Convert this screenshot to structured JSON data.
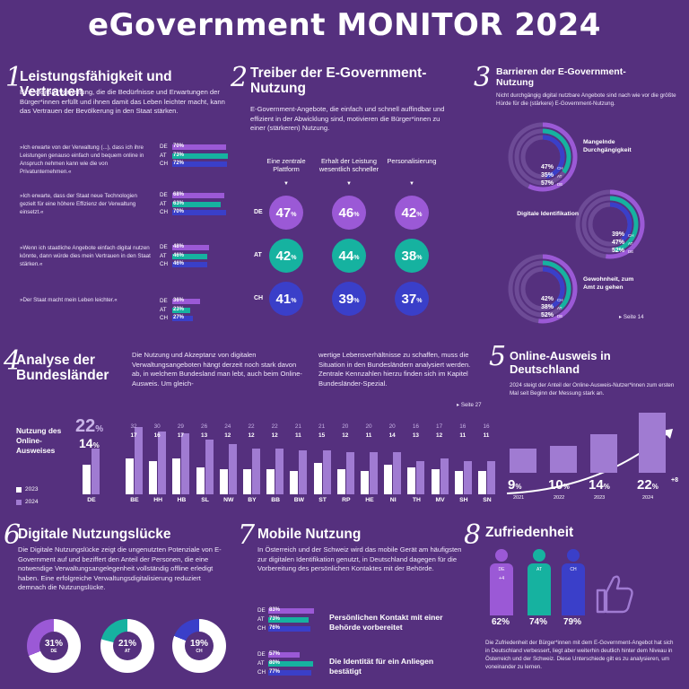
{
  "title": "eGovernment MONITOR 2024",
  "colors": {
    "bg": "#55307e",
    "de": "#9b59d6",
    "at": "#16b2a0",
    "ch": "#3a3fc9",
    "light": "#a07bd2"
  },
  "s1": {
    "num": "1",
    "heading": "Leistungsfähigkeit und Vertrauen",
    "intro": "Eine digitale Verwaltung, die die Bedürfnisse und Erwartungen der Bürger*innen erfüllt und ihnen damit das Leben leichter macht, kann das Vertrauen der Bevölkerung in den Staat stärken.",
    "groups": [
      {
        "q": "»Ich erwarte von der Verwaltung (...), dass ich ihre Leistungen genauso einfach und bequem online in Anspruch nehmen kann wie die von Privatunternehmen.«",
        "rows": [
          {
            "c": "DE",
            "v": 70,
            "t": "70%"
          },
          {
            "c": "AT",
            "v": 73,
            "t": "73%"
          },
          {
            "c": "CH",
            "v": 72,
            "t": "72%"
          }
        ]
      },
      {
        "q": "»Ich erwarte, dass der Staat neue Technologien gezielt für eine höhere Effizienz der Verwaltung einsetzt.«",
        "rows": [
          {
            "c": "DE",
            "v": 68,
            "t": "68%"
          },
          {
            "c": "AT",
            "v": 63,
            "t": "63%"
          },
          {
            "c": "CH",
            "v": 70,
            "t": "70%"
          }
        ]
      },
      {
        "q": "»Wenn ich staatliche Angebote einfach digital nutzen könnte, dann würde dies mein Vertrauen in den Staat stärken.«",
        "rows": [
          {
            "c": "DE",
            "v": 48,
            "t": "48%"
          },
          {
            "c": "AT",
            "v": 46,
            "t": "46%"
          },
          {
            "c": "CH",
            "v": 46,
            "t": "46%"
          }
        ]
      },
      {
        "q": "»Der Staat macht mein Leben leichter.«",
        "rows": [
          {
            "c": "DE",
            "v": 36,
            "t": "36%"
          },
          {
            "c": "AT",
            "v": 23,
            "t": "23%"
          },
          {
            "c": "CH",
            "v": 27,
            "t": "27%"
          }
        ]
      }
    ]
  },
  "s2": {
    "num": "2",
    "heading": "Treiber der E-Government-Nutzung",
    "intro": "E-Government-Angebote, die einfach und schnell auffindbar und effizient in der Abwicklung sind, motivieren die Bürger*innen zu einer (stärkeren) Nutzung.",
    "cols": [
      "Eine zentrale Plattform",
      "Erhalt der Leistung wesentlich schneller",
      "Personalisierung"
    ],
    "rows": [
      {
        "c": "DE",
        "vals": [
          "47",
          "46",
          "42"
        ]
      },
      {
        "c": "AT",
        "vals": [
          "42",
          "44",
          "38"
        ]
      },
      {
        "c": "CH",
        "vals": [
          "41",
          "39",
          "37"
        ]
      }
    ],
    "unit": "%"
  },
  "s3": {
    "num": "3",
    "heading": "Barrieren der E-Government-Nutzung",
    "intro": "Nicht durchgängig digital nutzbare Angebote sind nach wie vor die größte Hürde für die (stärkere) E-Government-Nutzung.",
    "items": [
      {
        "label": "Mangelnde Durchgängigkeit",
        "vals": [
          {
            "t": "47%",
            "c": "CH"
          },
          {
            "t": "35%",
            "c": "AT"
          },
          {
            "t": "57%",
            "c": "DE"
          }
        ]
      },
      {
        "label": "Digitale Identifikation",
        "vals": [
          {
            "t": "39%",
            "c": "CH"
          },
          {
            "t": "47%",
            "c": "AT"
          },
          {
            "t": "52%",
            "c": "DE"
          }
        ]
      },
      {
        "label": "Gewohnheit, zum Amt zu gehen",
        "vals": [
          {
            "t": "42%",
            "c": "CH"
          },
          {
            "t": "38%",
            "c": "AT"
          },
          {
            "t": "52%",
            "c": "DE"
          }
        ]
      }
    ],
    "ref": "▸ Seite 14"
  },
  "s4": {
    "num": "4",
    "heading": "Analyse der Bundesländer",
    "text1": "Die Nutzung und Akzeptanz von digitalen Verwaltungsangeboten hängt derzeit noch stark davon ab, in welchem Bundesland man lebt, auch beim Online-Ausweis. Um gleich-",
    "text2": "wertige Lebensverhältnisse zu schaffen, muss die Situation in den Bundesländern analysiert werden. Zentrale Kennzahlen hierzu finden sich im Kapitel Bundesländer-Spezial.",
    "ref": "▸ Seite 27",
    "chart_label": "Nutzung des Online-Ausweises",
    "legend": [
      "2023",
      "2024"
    ],
    "de": {
      "label": "DE",
      "v2024": "22",
      "v2023": "14",
      "unit": "%"
    }
  },
  "chart_data": {
    "type": "bar",
    "categories": [
      "DE",
      "BE",
      "HH",
      "HB",
      "SL",
      "NW",
      "BY",
      "BB",
      "BW",
      "ST",
      "RP",
      "HE",
      "NI",
      "TH",
      "MV",
      "SH",
      "SN"
    ],
    "series": [
      {
        "name": "2023",
        "values": [
          14,
          17,
          16,
          17,
          13,
          12,
          12,
          12,
          11,
          15,
          12,
          11,
          14,
          13,
          12,
          11,
          11
        ]
      },
      {
        "name": "2024",
        "values": [
          22,
          32,
          30,
          29,
          26,
          24,
          22,
          22,
          21,
          21,
          20,
          20,
          20,
          16,
          17,
          16,
          16
        ]
      }
    ]
  },
  "s5": {
    "num": "5",
    "heading": "Online-Ausweis in Deutschland",
    "intro": "2024 steigt der Anteil der Online-Ausweis-Nutzer*innen zum ersten Mal seit Beginn der Messung stark an.",
    "bars": [
      {
        "year": "2021",
        "v": 9,
        "t": "9"
      },
      {
        "year": "2022",
        "v": 10,
        "t": "10"
      },
      {
        "year": "2023",
        "v": 14,
        "t": "14"
      },
      {
        "year": "2024",
        "v": 22,
        "t": "22"
      }
    ],
    "unit": "%",
    "delta": "+8"
  },
  "s6": {
    "num": "6",
    "heading": "Digitale Nutzungslücke",
    "intro": "Die Digitale Nutzungslücke zeigt die ungenutzten Potenziale von E-Government auf und beziffert den Anteil der Personen, die eine notwendige Verwaltungsangelegenheit vollständig offline erledigt haben. Eine erfolgreiche Verwaltungsdigitalisierung reduziert demnach die Nutzungslücke.",
    "donuts": [
      {
        "c": "DE",
        "v": 31,
        "t": "31%"
      },
      {
        "c": "AT",
        "v": 21,
        "t": "21%"
      },
      {
        "c": "CH",
        "v": 19,
        "t": "19%"
      }
    ]
  },
  "s7": {
    "num": "7",
    "heading": "Mobile Nutzung",
    "intro": "In Österreich und der Schweiz wird das mobile Gerät am häufigsten zur digitalen Identifikation genutzt, in Deutschland dagegen für die Vorbereitung des persönlichen Kontaktes mit der Behörde.",
    "groups": [
      {
        "label": "Persönlichen Kontakt mit einer Behörde vorbereitet",
        "rows": [
          {
            "c": "DE",
            "v": 83,
            "t": "83%"
          },
          {
            "c": "AT",
            "v": 73,
            "t": "73%"
          },
          {
            "c": "CH",
            "v": 76,
            "t": "76%"
          }
        ]
      },
      {
        "label": "Die Identität für ein Anliegen bestätigt",
        "rows": [
          {
            "c": "DE",
            "v": 57,
            "t": "57%"
          },
          {
            "c": "AT",
            "v": 80,
            "t": "80%"
          },
          {
            "c": "CH",
            "v": 77,
            "t": "77%"
          }
        ]
      }
    ]
  },
  "s8": {
    "num": "8",
    "heading": "Zufriedenheit",
    "people": [
      {
        "c": "DE",
        "t": "62%",
        "delta": "+4"
      },
      {
        "c": "AT",
        "t": "74%"
      },
      {
        "c": "CH",
        "t": "79%"
      }
    ],
    "intro": "Die Zufriedenheit der Bürger*innen mit dem E-Government-Angebot hat sich in Deutschland verbessert, liegt aber weiterhin deutlich hinter dem Niveau in Österreich und der Schweiz. Diese Unterschiede gilt es zu analysieren, um voneinander zu lernen."
  }
}
